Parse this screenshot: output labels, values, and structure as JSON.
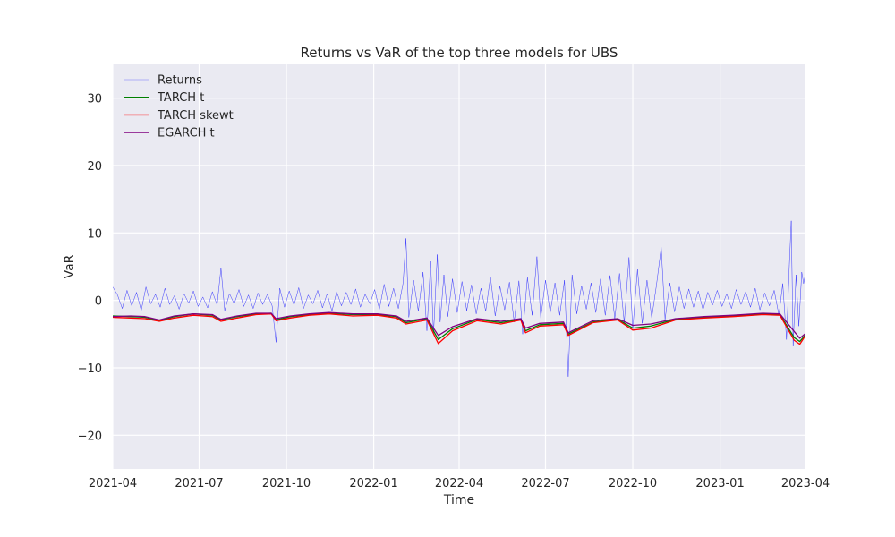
{
  "chart_data": {
    "type": "line",
    "title": "Returns vs VaR of the top three models for UBS",
    "xlabel": "Time",
    "ylabel": "VaR",
    "xlim": [
      "2021-04-01",
      "2023-04-01"
    ],
    "ylim": [
      -25,
      35
    ],
    "x_ticks": [
      "2021-04",
      "2021-07",
      "2021-10",
      "2022-01",
      "2022-04",
      "2022-07",
      "2022-10",
      "2023-01",
      "2023-04"
    ],
    "y_ticks": [
      -20,
      -10,
      0,
      10,
      20,
      30
    ],
    "grid": true,
    "legend_position": "top-left",
    "series": [
      {
        "name": "Returns",
        "color": "#0000ff",
        "style": "thin",
        "points": [
          [
            "2021-04-01",
            2.0
          ],
          [
            "2021-04-06",
            0.8
          ],
          [
            "2021-04-11",
            -1.2
          ],
          [
            "2021-04-16",
            1.5
          ],
          [
            "2021-04-21",
            -0.8
          ],
          [
            "2021-04-26",
            1.2
          ],
          [
            "2021-05-01",
            -1.5
          ],
          [
            "2021-05-06",
            2.0
          ],
          [
            "2021-05-11",
            -0.5
          ],
          [
            "2021-05-16",
            0.9
          ],
          [
            "2021-05-21",
            -1.0
          ],
          [
            "2021-05-26",
            1.8
          ],
          [
            "2021-05-31",
            -0.6
          ],
          [
            "2021-06-05",
            0.7
          ],
          [
            "2021-06-10",
            -1.3
          ],
          [
            "2021-06-15",
            1.0
          ],
          [
            "2021-06-20",
            -0.4
          ],
          [
            "2021-06-25",
            1.4
          ],
          [
            "2021-06-30",
            -0.9
          ],
          [
            "2021-07-05",
            0.5
          ],
          [
            "2021-07-10",
            -1.1
          ],
          [
            "2021-07-15",
            1.3
          ],
          [
            "2021-07-20",
            -0.7
          ],
          [
            "2021-07-24",
            4.8
          ],
          [
            "2021-07-28",
            -1.5
          ],
          [
            "2021-08-02",
            1.0
          ],
          [
            "2021-08-07",
            -0.5
          ],
          [
            "2021-08-12",
            1.6
          ],
          [
            "2021-08-17",
            -0.9
          ],
          [
            "2021-08-22",
            0.8
          ],
          [
            "2021-08-27",
            -1.2
          ],
          [
            "2021-09-01",
            1.1
          ],
          [
            "2021-09-06",
            -0.6
          ],
          [
            "2021-09-11",
            0.9
          ],
          [
            "2021-09-16",
            -0.8
          ],
          [
            "2021-09-20",
            -6.2
          ],
          [
            "2021-09-24",
            1.8
          ],
          [
            "2021-09-29",
            -1.0
          ],
          [
            "2021-10-04",
            1.4
          ],
          [
            "2021-10-09",
            -0.7
          ],
          [
            "2021-10-14",
            1.9
          ],
          [
            "2021-10-19",
            -1.2
          ],
          [
            "2021-10-24",
            0.8
          ],
          [
            "2021-10-29",
            -0.5
          ],
          [
            "2021-11-03",
            1.5
          ],
          [
            "2021-11-08",
            -1.1
          ],
          [
            "2021-11-13",
            1.0
          ],
          [
            "2021-11-18",
            -1.6
          ],
          [
            "2021-11-23",
            1.3
          ],
          [
            "2021-11-28",
            -0.8
          ],
          [
            "2021-12-03",
            1.2
          ],
          [
            "2021-12-08",
            -0.6
          ],
          [
            "2021-12-13",
            1.7
          ],
          [
            "2021-12-18",
            -1.0
          ],
          [
            "2021-12-23",
            0.9
          ],
          [
            "2021-12-28",
            -0.5
          ],
          [
            "2022-01-02",
            1.6
          ],
          [
            "2022-01-07",
            -1.3
          ],
          [
            "2022-01-12",
            2.4
          ],
          [
            "2022-01-17",
            -0.9
          ],
          [
            "2022-01-22",
            1.8
          ],
          [
            "2022-01-27",
            -1.2
          ],
          [
            "2022-02-01",
            2.6
          ],
          [
            "2022-02-04",
            9.2
          ],
          [
            "2022-02-07",
            -2.5
          ],
          [
            "2022-02-12",
            3.0
          ],
          [
            "2022-02-17",
            -1.6
          ],
          [
            "2022-02-22",
            4.2
          ],
          [
            "2022-02-26",
            -4.5
          ],
          [
            "2022-03-02",
            5.8
          ],
          [
            "2022-03-05",
            -5.0
          ],
          [
            "2022-03-09",
            6.8
          ],
          [
            "2022-03-12",
            -3.2
          ],
          [
            "2022-03-16",
            3.8
          ],
          [
            "2022-03-20",
            -2.4
          ],
          [
            "2022-03-25",
            3.2
          ],
          [
            "2022-03-30",
            -1.8
          ],
          [
            "2022-04-04",
            2.8
          ],
          [
            "2022-04-09",
            -1.5
          ],
          [
            "2022-04-14",
            2.3
          ],
          [
            "2022-04-19",
            -2.0
          ],
          [
            "2022-04-24",
            1.8
          ],
          [
            "2022-04-29",
            -1.6
          ],
          [
            "2022-05-04",
            3.5
          ],
          [
            "2022-05-09",
            -2.3
          ],
          [
            "2022-05-14",
            2.1
          ],
          [
            "2022-05-19",
            -1.4
          ],
          [
            "2022-05-24",
            2.7
          ],
          [
            "2022-05-29",
            -3.2
          ],
          [
            "2022-06-03",
            2.9
          ],
          [
            "2022-06-07",
            -5.0
          ],
          [
            "2022-06-12",
            3.4
          ],
          [
            "2022-06-17",
            -2.2
          ],
          [
            "2022-06-22",
            6.5
          ],
          [
            "2022-06-26",
            -2.6
          ],
          [
            "2022-07-01",
            3.0
          ],
          [
            "2022-07-06",
            -1.8
          ],
          [
            "2022-07-11",
            2.6
          ],
          [
            "2022-07-16",
            -2.2
          ],
          [
            "2022-07-21",
            3.0
          ],
          [
            "2022-07-25",
            -11.3
          ],
          [
            "2022-07-29",
            3.8
          ],
          [
            "2022-08-03",
            -2.0
          ],
          [
            "2022-08-08",
            2.2
          ],
          [
            "2022-08-13",
            -1.3
          ],
          [
            "2022-08-18",
            2.6
          ],
          [
            "2022-08-23",
            -1.8
          ],
          [
            "2022-08-28",
            3.2
          ],
          [
            "2022-09-02",
            -2.2
          ],
          [
            "2022-09-07",
            3.7
          ],
          [
            "2022-09-12",
            -2.7
          ],
          [
            "2022-09-17",
            4.0
          ],
          [
            "2022-09-22",
            -3.3
          ],
          [
            "2022-09-27",
            6.4
          ],
          [
            "2022-10-01",
            -4.2
          ],
          [
            "2022-10-06",
            4.6
          ],
          [
            "2022-10-11",
            -3.4
          ],
          [
            "2022-10-16",
            3.0
          ],
          [
            "2022-10-21",
            -2.6
          ],
          [
            "2022-10-26",
            2.3
          ],
          [
            "2022-10-31",
            7.9
          ],
          [
            "2022-11-04",
            -2.8
          ],
          [
            "2022-11-09",
            2.6
          ],
          [
            "2022-11-14",
            -1.7
          ],
          [
            "2022-11-19",
            2.0
          ],
          [
            "2022-11-24",
            -1.2
          ],
          [
            "2022-11-29",
            1.7
          ],
          [
            "2022-12-04",
            -1.0
          ],
          [
            "2022-12-09",
            1.4
          ],
          [
            "2022-12-14",
            -1.4
          ],
          [
            "2022-12-19",
            1.2
          ],
          [
            "2022-12-24",
            -0.7
          ],
          [
            "2022-12-29",
            1.5
          ],
          [
            "2023-01-03",
            -0.9
          ],
          [
            "2023-01-08",
            1.0
          ],
          [
            "2023-01-13",
            -1.2
          ],
          [
            "2023-01-18",
            1.6
          ],
          [
            "2023-01-23",
            -0.6
          ],
          [
            "2023-01-28",
            1.3
          ],
          [
            "2023-02-02",
            -1.0
          ],
          [
            "2023-02-07",
            1.8
          ],
          [
            "2023-02-12",
            -1.4
          ],
          [
            "2023-02-17",
            1.1
          ],
          [
            "2023-02-22",
            -0.8
          ],
          [
            "2023-02-27",
            1.5
          ],
          [
            "2023-03-04",
            -2.2
          ],
          [
            "2023-03-08",
            2.5
          ],
          [
            "2023-03-12",
            -5.8
          ],
          [
            "2023-03-15",
            5.3
          ],
          [
            "2023-03-17",
            11.8
          ],
          [
            "2023-03-19",
            -6.8
          ],
          [
            "2023-03-22",
            3.8
          ],
          [
            "2023-03-25",
            -3.8
          ],
          [
            "2023-03-28",
            4.2
          ],
          [
            "2023-03-30",
            2.5
          ],
          [
            "2023-04-01",
            4.0
          ]
        ]
      },
      {
        "name": "TARCH t",
        "color": "#008000",
        "style": "normal",
        "points": [
          [
            "2021-04-01",
            -2.3
          ],
          [
            "2021-04-20",
            -2.4
          ],
          [
            "2021-05-05",
            -2.5
          ],
          [
            "2021-05-20",
            -3.0
          ],
          [
            "2021-06-05",
            -2.4
          ],
          [
            "2021-06-25",
            -2.0
          ],
          [
            "2021-07-15",
            -2.2
          ],
          [
            "2021-07-24",
            -2.9
          ],
          [
            "2021-08-10",
            -2.4
          ],
          [
            "2021-08-30",
            -2.0
          ],
          [
            "2021-09-15",
            -1.9
          ],
          [
            "2021-09-20",
            -2.9
          ],
          [
            "2021-10-05",
            -2.4
          ],
          [
            "2021-10-25",
            -2.1
          ],
          [
            "2021-11-15",
            -1.9
          ],
          [
            "2021-12-10",
            -2.1
          ],
          [
            "2022-01-05",
            -2.1
          ],
          [
            "2022-01-25",
            -2.4
          ],
          [
            "2022-02-04",
            -3.3
          ],
          [
            "2022-02-26",
            -2.7
          ],
          [
            "2022-03-10",
            -5.8
          ],
          [
            "2022-03-25",
            -4.2
          ],
          [
            "2022-04-20",
            -2.8
          ],
          [
            "2022-05-15",
            -3.3
          ],
          [
            "2022-06-05",
            -2.8
          ],
          [
            "2022-06-10",
            -4.5
          ],
          [
            "2022-06-25",
            -3.6
          ],
          [
            "2022-07-20",
            -3.4
          ],
          [
            "2022-07-25",
            -5.0
          ],
          [
            "2022-08-20",
            -3.2
          ],
          [
            "2022-09-15",
            -2.8
          ],
          [
            "2022-10-01",
            -4.1
          ],
          [
            "2022-10-20",
            -3.8
          ],
          [
            "2022-11-15",
            -2.8
          ],
          [
            "2022-12-15",
            -2.5
          ],
          [
            "2023-01-15",
            -2.3
          ],
          [
            "2023-02-15",
            -2.0
          ],
          [
            "2023-03-05",
            -2.1
          ],
          [
            "2023-03-20",
            -5.5
          ],
          [
            "2023-03-26",
            -6.1
          ],
          [
            "2023-04-01",
            -5.1
          ]
        ]
      },
      {
        "name": "TARCH skewt",
        "color": "#ff0000",
        "style": "normal",
        "points": [
          [
            "2021-04-01",
            -2.5
          ],
          [
            "2021-04-20",
            -2.6
          ],
          [
            "2021-05-05",
            -2.7
          ],
          [
            "2021-05-20",
            -3.1
          ],
          [
            "2021-06-05",
            -2.6
          ],
          [
            "2021-06-25",
            -2.2
          ],
          [
            "2021-07-15",
            -2.4
          ],
          [
            "2021-07-24",
            -3.1
          ],
          [
            "2021-08-10",
            -2.6
          ],
          [
            "2021-08-30",
            -2.1
          ],
          [
            "2021-09-15",
            -2.0
          ],
          [
            "2021-09-20",
            -3.0
          ],
          [
            "2021-10-05",
            -2.6
          ],
          [
            "2021-10-25",
            -2.2
          ],
          [
            "2021-11-15",
            -2.0
          ],
          [
            "2021-12-10",
            -2.3
          ],
          [
            "2022-01-05",
            -2.2
          ],
          [
            "2022-01-25",
            -2.6
          ],
          [
            "2022-02-04",
            -3.5
          ],
          [
            "2022-02-26",
            -2.9
          ],
          [
            "2022-03-10",
            -6.4
          ],
          [
            "2022-03-25",
            -4.5
          ],
          [
            "2022-04-20",
            -3.0
          ],
          [
            "2022-05-15",
            -3.5
          ],
          [
            "2022-06-05",
            -2.9
          ],
          [
            "2022-06-10",
            -4.8
          ],
          [
            "2022-06-25",
            -3.8
          ],
          [
            "2022-07-20",
            -3.6
          ],
          [
            "2022-07-25",
            -5.2
          ],
          [
            "2022-08-20",
            -3.3
          ],
          [
            "2022-09-15",
            -2.9
          ],
          [
            "2022-10-01",
            -4.4
          ],
          [
            "2022-10-20",
            -4.1
          ],
          [
            "2022-11-15",
            -2.9
          ],
          [
            "2022-12-15",
            -2.6
          ],
          [
            "2023-01-15",
            -2.4
          ],
          [
            "2023-02-15",
            -2.1
          ],
          [
            "2023-03-05",
            -2.2
          ],
          [
            "2023-03-20",
            -5.9
          ],
          [
            "2023-03-26",
            -6.5
          ],
          [
            "2023-04-01",
            -5.2
          ]
        ]
      },
      {
        "name": "EGARCH t",
        "color": "#800080",
        "style": "normal",
        "points": [
          [
            "2021-04-01",
            -2.4
          ],
          [
            "2021-04-20",
            -2.3
          ],
          [
            "2021-05-05",
            -2.4
          ],
          [
            "2021-05-20",
            -2.9
          ],
          [
            "2021-06-05",
            -2.3
          ],
          [
            "2021-06-25",
            -2.0
          ],
          [
            "2021-07-15",
            -2.1
          ],
          [
            "2021-07-24",
            -2.8
          ],
          [
            "2021-08-10",
            -2.3
          ],
          [
            "2021-08-30",
            -1.9
          ],
          [
            "2021-09-15",
            -1.9
          ],
          [
            "2021-09-20",
            -2.7
          ],
          [
            "2021-10-05",
            -2.3
          ],
          [
            "2021-10-25",
            -2.0
          ],
          [
            "2021-11-15",
            -1.8
          ],
          [
            "2021-12-10",
            -2.0
          ],
          [
            "2022-01-05",
            -2.0
          ],
          [
            "2022-01-25",
            -2.3
          ],
          [
            "2022-02-04",
            -3.1
          ],
          [
            "2022-02-26",
            -2.6
          ],
          [
            "2022-03-10",
            -5.2
          ],
          [
            "2022-03-25",
            -3.9
          ],
          [
            "2022-04-20",
            -2.7
          ],
          [
            "2022-05-15",
            -3.1
          ],
          [
            "2022-06-05",
            -2.7
          ],
          [
            "2022-06-10",
            -4.1
          ],
          [
            "2022-06-25",
            -3.4
          ],
          [
            "2022-07-20",
            -3.2
          ],
          [
            "2022-07-25",
            -4.8
          ],
          [
            "2022-08-20",
            -3.0
          ],
          [
            "2022-09-15",
            -2.7
          ],
          [
            "2022-10-01",
            -3.7
          ],
          [
            "2022-10-20",
            -3.5
          ],
          [
            "2022-11-15",
            -2.7
          ],
          [
            "2022-12-15",
            -2.4
          ],
          [
            "2023-01-15",
            -2.2
          ],
          [
            "2023-02-15",
            -1.9
          ],
          [
            "2023-03-05",
            -2.0
          ],
          [
            "2023-03-20",
            -4.6
          ],
          [
            "2023-03-26",
            -5.6
          ],
          [
            "2023-04-01",
            -4.9
          ]
        ]
      }
    ]
  }
}
